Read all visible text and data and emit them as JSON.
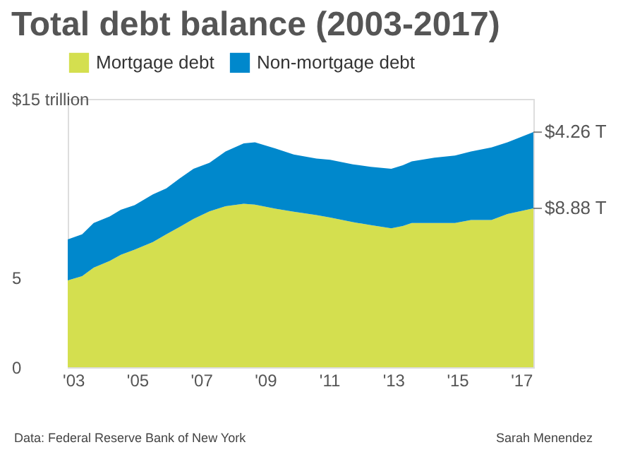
{
  "chart_data": {
    "type": "area",
    "stacked": true,
    "title": "Total debt balance (2003-2017)",
    "x": [
      2002.83,
      2003.28,
      2003.64,
      2004.14,
      2004.49,
      2004.92,
      2005.49,
      2005.91,
      2006.34,
      2006.76,
      2007.26,
      2007.76,
      2008.33,
      2008.68,
      2009.32,
      2009.89,
      2010.6,
      2011.03,
      2011.74,
      2012.3,
      2012.94,
      2013.3,
      2013.58,
      2014.29,
      2014.93,
      2015.43,
      2016.07,
      2016.57,
      2017.38
    ],
    "series": [
      {
        "name": "Mortgage debt",
        "color": "#d4df4f",
        "values": [
          4.86,
          5.09,
          5.57,
          5.94,
          6.29,
          6.57,
          7.0,
          7.43,
          7.86,
          8.29,
          8.71,
          9.0,
          9.14,
          9.09,
          8.86,
          8.69,
          8.51,
          8.37,
          8.11,
          7.94,
          7.77,
          7.89,
          8.06,
          8.06,
          8.06,
          8.23,
          8.23,
          8.57,
          8.88
        ]
      },
      {
        "name": "Non-mortgage debt",
        "color": "#0088cc",
        "values": [
          2.28,
          2.34,
          2.49,
          2.49,
          2.51,
          2.49,
          2.66,
          2.57,
          2.71,
          2.8,
          2.72,
          3.06,
          3.37,
          3.48,
          3.37,
          3.2,
          3.15,
          3.23,
          3.23,
          3.26,
          3.32,
          3.4,
          3.45,
          3.65,
          3.77,
          3.83,
          4.06,
          4.0,
          4.26
        ]
      }
    ],
    "xlim": [
      2002.83,
      2017.38
    ],
    "xticks": [
      {
        "value": 2003,
        "label": "'03"
      },
      {
        "value": 2005,
        "label": "'05"
      },
      {
        "value": 2007,
        "label": "'07"
      },
      {
        "value": 2009,
        "label": "'09"
      },
      {
        "value": 2011,
        "label": "'11"
      },
      {
        "value": 2013,
        "label": "'13"
      },
      {
        "value": 2015,
        "label": "'15"
      },
      {
        "value": 2017,
        "label": "'17"
      }
    ],
    "ylim": [
      0,
      15
    ],
    "yticks": [
      0,
      5,
      {
        "value": 15,
        "label": "$15 trillion"
      }
    ],
    "grid": false,
    "legend": "top",
    "annotations": [
      {
        "text": "$4.26 T",
        "x": 2017.38,
        "y": 13.14
      },
      {
        "text": "$8.88 T",
        "x": 2017.38,
        "y": 8.88
      },
      "Data: Federal Reserve Bank of New York",
      "Sarah Menendez"
    ]
  }
}
